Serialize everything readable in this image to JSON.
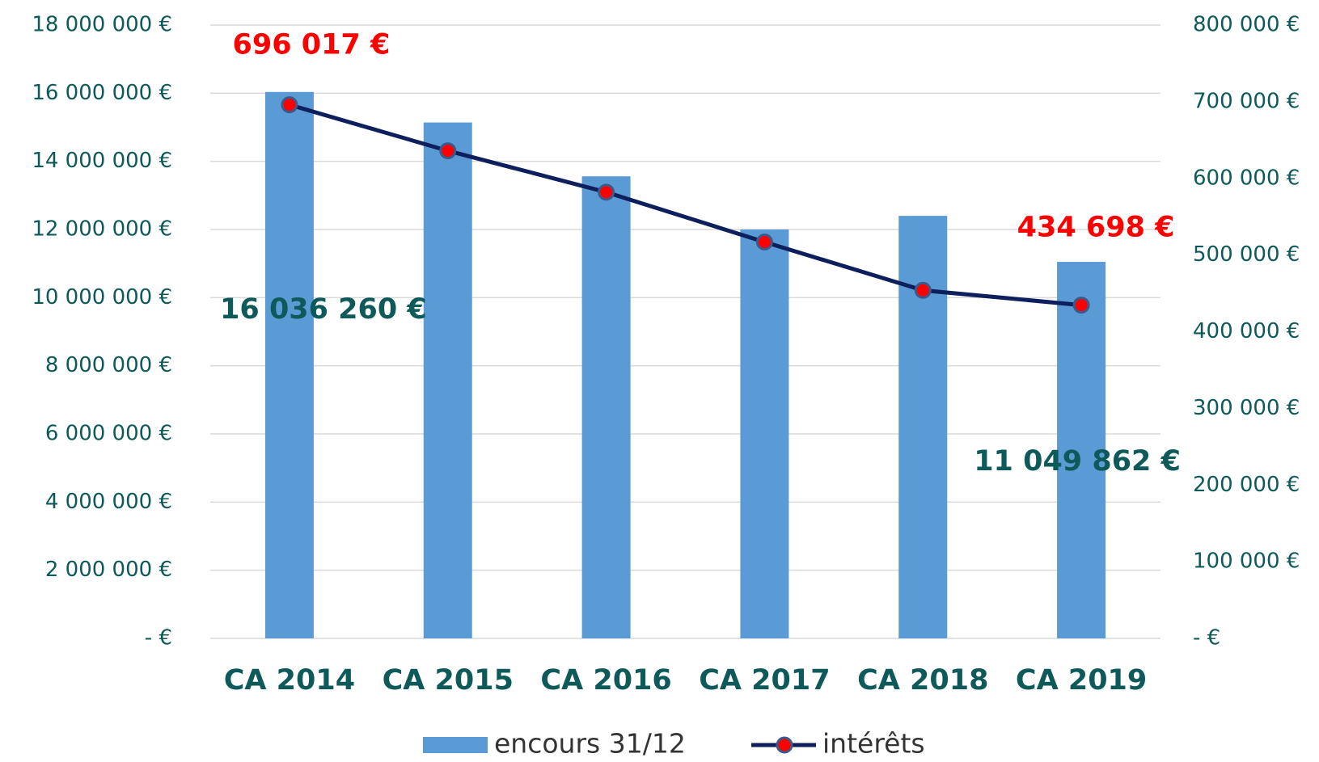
{
  "chart_data": {
    "type": "bar_line",
    "categories": [
      "CA 2014",
      "CA 2015",
      "CA 2016",
      "CA 2017",
      "CA 2018",
      "CA 2019"
    ],
    "series": [
      {
        "name": "encours 31/12",
        "type": "bar",
        "color": "#5b9bd5",
        "label_color": "#0e5a5a",
        "values": [
          16036260,
          15140000,
          13560000,
          12000000,
          12400000,
          11049862
        ],
        "value_labels": [
          "16 036 260 €",
          null,
          null,
          null,
          null,
          "11 049 862 €"
        ]
      },
      {
        "name": "intérêts",
        "type": "line",
        "axis": "y2",
        "color": "#0d1f5c",
        "marker_color": "#ff0000",
        "label_color": "#ff0000",
        "values": [
          696017,
          636000,
          582000,
          517000,
          454000,
          434698
        ],
        "value_labels": [
          "696 017 €",
          null,
          null,
          null,
          null,
          "434 698 €"
        ]
      }
    ],
    "ylim": [
      0,
      18000000
    ],
    "yticks": [
      {
        "value": 0,
        "label": "- €"
      },
      {
        "value": 2000000,
        "label": "2 000 000 €"
      },
      {
        "value": 4000000,
        "label": "4 000 000 €"
      },
      {
        "value": 6000000,
        "label": "6 000 000 €"
      },
      {
        "value": 8000000,
        "label": "8 000 000 €"
      },
      {
        "value": 10000000,
        "label": "10 000 000 €"
      },
      {
        "value": 12000000,
        "label": "12 000 000 €"
      },
      {
        "value": 14000000,
        "label": "14 000 000 €"
      },
      {
        "value": 16000000,
        "label": "16 000 000 €"
      },
      {
        "value": 18000000,
        "label": "18 000 000 €"
      }
    ],
    "y2lim": [
      0,
      800000
    ],
    "y2ticks": [
      {
        "value": 0,
        "label": "- €"
      },
      {
        "value": 100000,
        "label": "100 000 €"
      },
      {
        "value": 200000,
        "label": "200 000 €"
      },
      {
        "value": 300000,
        "label": "300 000 €"
      },
      {
        "value": 400000,
        "label": "400 000 €"
      },
      {
        "value": 500000,
        "label": "500 000 €"
      },
      {
        "value": 600000,
        "label": "600 000 €"
      },
      {
        "value": 700000,
        "label": "700 000 €"
      },
      {
        "value": 800000,
        "label": "800 000 €"
      }
    ],
    "grid": true,
    "legend": "bottom"
  }
}
